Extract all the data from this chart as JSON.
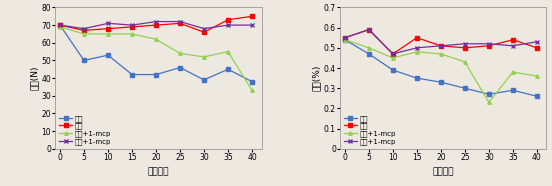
{
  "x": [
    0,
    5,
    10,
    15,
    20,
    25,
    30,
    35,
    40
  ],
  "chart1": {
    "ylabel": "경도(N)",
    "xlabel": "저장일수",
    "ylim": [
      0,
      80
    ],
    "yticks": [
      0,
      10,
      20,
      30,
      40,
      50,
      60,
      70,
      80
    ],
    "series": {
      "상온": {
        "color": "#4472C4",
        "marker": "s",
        "values": [
          70,
          50,
          53,
          42,
          42,
          46,
          39,
          45,
          38
        ]
      },
      "저온": {
        "color": "#FF0000",
        "marker": "s",
        "values": [
          70,
          67,
          68,
          69,
          70,
          71,
          66,
          73,
          75
        ]
      },
      "상온+1-mcp": {
        "color": "#92D050",
        "marker": "^",
        "values": [
          69,
          65,
          65,
          65,
          62,
          54,
          52,
          55,
          33
        ]
      },
      "저온+1-mcp": {
        "color": "#7030A0",
        "marker": "x",
        "values": [
          70,
          68,
          71,
          70,
          72,
          72,
          68,
          70,
          70
        ]
      }
    }
  },
  "chart2": {
    "ylabel": "산도(%)",
    "xlabel": "저장일수",
    "ylim": [
      0,
      0.7
    ],
    "yticks": [
      0,
      0.1,
      0.2,
      0.3,
      0.4,
      0.5,
      0.6,
      0.7
    ],
    "series": {
      "상온": {
        "color": "#4472C4",
        "marker": "s",
        "values": [
          0.54,
          0.47,
          0.39,
          0.35,
          0.33,
          0.3,
          0.27,
          0.29,
          0.26
        ]
      },
      "저온": {
        "color": "#FF0000",
        "marker": "s",
        "values": [
          0.55,
          0.59,
          0.47,
          0.55,
          0.51,
          0.5,
          0.51,
          0.54,
          0.5
        ]
      },
      "상온+1-mcp": {
        "color": "#92D050",
        "marker": "^",
        "values": [
          0.54,
          0.5,
          0.45,
          0.48,
          0.47,
          0.43,
          0.23,
          0.38,
          0.36
        ]
      },
      "저온+1-mcp": {
        "color": "#7030A0",
        "marker": "x",
        "values": [
          0.55,
          0.59,
          0.47,
          0.5,
          0.51,
          0.52,
          0.52,
          0.51,
          0.53
        ]
      }
    }
  },
  "legend_labels": [
    "상온",
    "저온",
    "상온+1-mcp",
    "저온+1-mcp"
  ],
  "background_color": "#ede8e0"
}
